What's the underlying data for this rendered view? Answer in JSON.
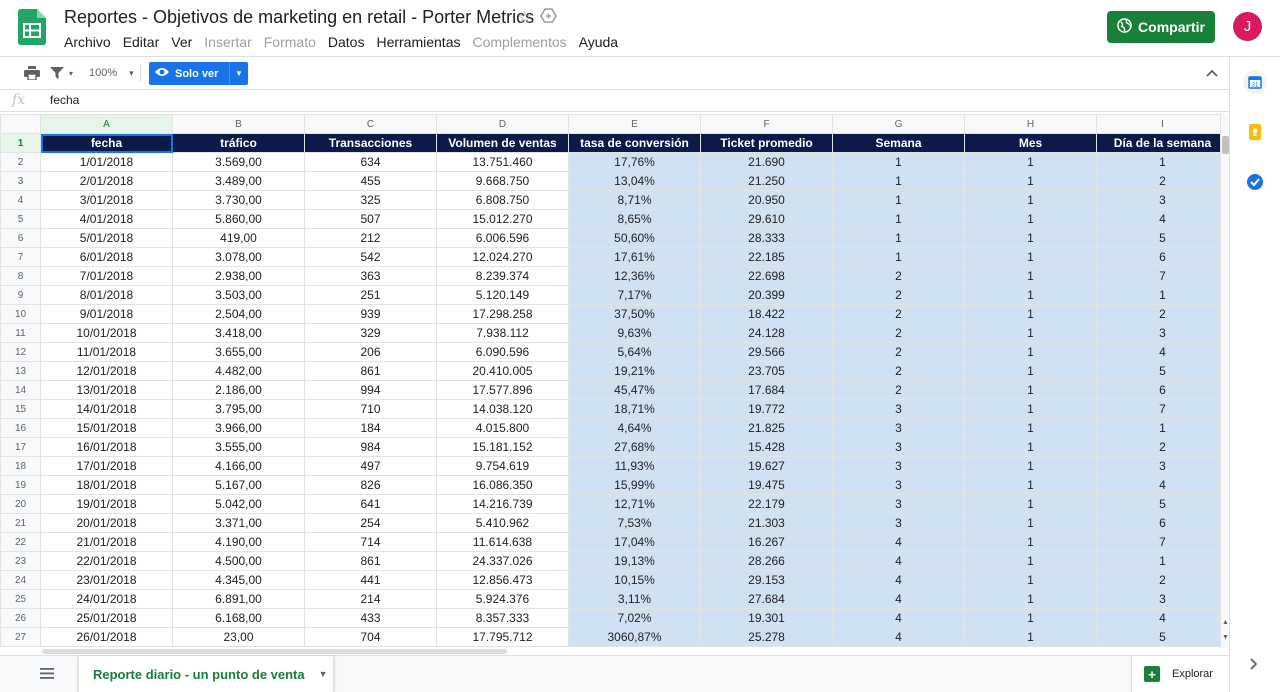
{
  "header": {
    "title": "Reportes - Objetivos de marketing en retail  - Porter Metrics",
    "share_label": "Compartir",
    "avatar_initial": "J",
    "menu": [
      {
        "label": "Archivo",
        "enabled": true
      },
      {
        "label": "Editar",
        "enabled": true
      },
      {
        "label": "Ver",
        "enabled": true
      },
      {
        "label": "Insertar",
        "enabled": false
      },
      {
        "label": "Formato",
        "enabled": false
      },
      {
        "label": "Datos",
        "enabled": true
      },
      {
        "label": "Herramientas",
        "enabled": true
      },
      {
        "label": "Complementos",
        "enabled": false
      },
      {
        "label": "Ayuda",
        "enabled": true
      }
    ]
  },
  "toolbar": {
    "zoom": "100%",
    "mode_label": "Solo ver"
  },
  "formula_bar": {
    "fx": "fx",
    "value": "fecha"
  },
  "sheet": {
    "columns": [
      "A",
      "B",
      "C",
      "D",
      "E",
      "F",
      "G",
      "H",
      "I"
    ],
    "headers": [
      "fecha",
      "tráfico",
      "Transacciones",
      "Volumen de ventas",
      "tasa de conversión",
      "Ticket promedio",
      "Semana",
      "Mes",
      "Día de la semana"
    ],
    "rows": [
      [
        "1/01/2018",
        "3.569,00",
        "634",
        "13.751.460",
        "17,76%",
        "21.690",
        "1",
        "1",
        "1"
      ],
      [
        "2/01/2018",
        "3.489,00",
        "455",
        "9.668.750",
        "13,04%",
        "21.250",
        "1",
        "1",
        "2"
      ],
      [
        "3/01/2018",
        "3.730,00",
        "325",
        "6.808.750",
        "8,71%",
        "20.950",
        "1",
        "1",
        "3"
      ],
      [
        "4/01/2018",
        "5.860,00",
        "507",
        "15.012.270",
        "8,65%",
        "29.610",
        "1",
        "1",
        "4"
      ],
      [
        "5/01/2018",
        "419,00",
        "212",
        "6.006.596",
        "50,60%",
        "28.333",
        "1",
        "1",
        "5"
      ],
      [
        "6/01/2018",
        "3.078,00",
        "542",
        "12.024.270",
        "17,61%",
        "22.185",
        "1",
        "1",
        "6"
      ],
      [
        "7/01/2018",
        "2.938,00",
        "363",
        "8.239.374",
        "12,36%",
        "22.698",
        "2",
        "1",
        "7"
      ],
      [
        "8/01/2018",
        "3.503,00",
        "251",
        "5.120.149",
        "7,17%",
        "20.399",
        "2",
        "1",
        "1"
      ],
      [
        "9/01/2018",
        "2.504,00",
        "939",
        "17.298.258",
        "37,50%",
        "18.422",
        "2",
        "1",
        "2"
      ],
      [
        "10/01/2018",
        "3.418,00",
        "329",
        "7.938.112",
        "9,63%",
        "24.128",
        "2",
        "1",
        "3"
      ],
      [
        "11/01/2018",
        "3.655,00",
        "206",
        "6.090.596",
        "5,64%",
        "29.566",
        "2",
        "1",
        "4"
      ],
      [
        "12/01/2018",
        "4.482,00",
        "861",
        "20.410.005",
        "19,21%",
        "23.705",
        "2",
        "1",
        "5"
      ],
      [
        "13/01/2018",
        "2.186,00",
        "994",
        "17.577.896",
        "45,47%",
        "17.684",
        "2",
        "1",
        "6"
      ],
      [
        "14/01/2018",
        "3.795,00",
        "710",
        "14.038.120",
        "18,71%",
        "19.772",
        "3",
        "1",
        "7"
      ],
      [
        "15/01/2018",
        "3.966,00",
        "184",
        "4.015.800",
        "4,64%",
        "21.825",
        "3",
        "1",
        "1"
      ],
      [
        "16/01/2018",
        "3.555,00",
        "984",
        "15.181.152",
        "27,68%",
        "15.428",
        "3",
        "1",
        "2"
      ],
      [
        "17/01/2018",
        "4.166,00",
        "497",
        "9.754.619",
        "11,93%",
        "19.627",
        "3",
        "1",
        "3"
      ],
      [
        "18/01/2018",
        "5.167,00",
        "826",
        "16.086.350",
        "15,99%",
        "19.475",
        "3",
        "1",
        "4"
      ],
      [
        "19/01/2018",
        "5.042,00",
        "641",
        "14.216.739",
        "12,71%",
        "22.179",
        "3",
        "1",
        "5"
      ],
      [
        "20/01/2018",
        "3.371,00",
        "254",
        "5.410.962",
        "7,53%",
        "21.303",
        "3",
        "1",
        "6"
      ],
      [
        "21/01/2018",
        "4.190,00",
        "714",
        "11.614.638",
        "17,04%",
        "16.267",
        "4",
        "1",
        "7"
      ],
      [
        "22/01/2018",
        "4.500,00",
        "861",
        "24.337.026",
        "19,13%",
        "28.266",
        "4",
        "1",
        "1"
      ],
      [
        "23/01/2018",
        "4.345,00",
        "441",
        "12.856.473",
        "10,15%",
        "29.153",
        "4",
        "1",
        "2"
      ],
      [
        "24/01/2018",
        "6.891,00",
        "214",
        "5.924.376",
        "3,11%",
        "27.684",
        "4",
        "1",
        "3"
      ],
      [
        "25/01/2018",
        "6.168,00",
        "433",
        "8.357.333",
        "7,02%",
        "19.301",
        "4",
        "1",
        "4"
      ],
      [
        "26/01/2018",
        "23,00",
        "704",
        "17.795.712",
        "3060,87%",
        "25.278",
        "4",
        "1",
        "5"
      ]
    ]
  },
  "bottom": {
    "sheet_tab_label": "Reporte diario - un punto de venta",
    "explore_label": "Explorar"
  },
  "colors": {
    "brand_green": "#188038",
    "header_navy": "#0c1a4a",
    "highlight_blue": "#d0e2f2",
    "primary_blue": "#1a73e8"
  }
}
